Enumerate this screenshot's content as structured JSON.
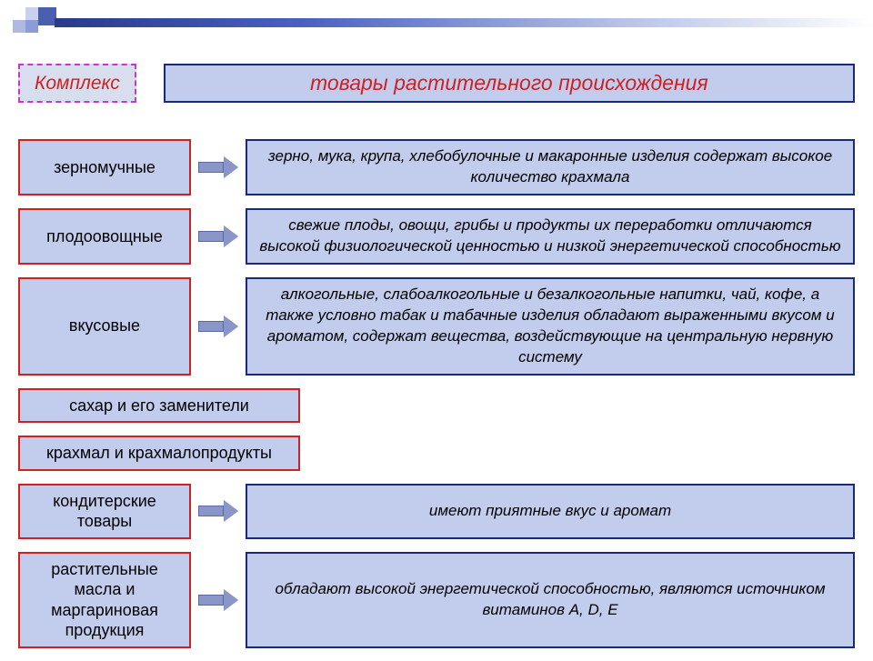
{
  "header": {
    "komplex": "Комплекс",
    "title": "товары растительного происхождения"
  },
  "rows": [
    {
      "category": "зерномучные",
      "description": "зерно, мука, крупа, хлебобулочные и макаронные изделия содержат высокое количество крахмала",
      "has_desc": true,
      "wide": false
    },
    {
      "category": "плодоовощные",
      "description": "свежие плоды, овощи, грибы и продукты их переработки отличаются высокой физиологической ценностью и низкой энергетической способностью",
      "has_desc": true,
      "wide": false
    },
    {
      "category": "вкусовые",
      "description": "алкогольные, слабоалкогольные и безалкогольные напитки, чай, кофе, а также условно табак и табачные изделия обладают выраженными вкусом и ароматом, содержат вещества, воздействующие на центральную нервную систему",
      "has_desc": true,
      "wide": false
    },
    {
      "category": "сахар и его заменители",
      "description": "",
      "has_desc": false,
      "wide": true
    },
    {
      "category": "крахмал и крахмалопродукты",
      "description": "",
      "has_desc": false,
      "wide": true
    },
    {
      "category": "кондитерские товары",
      "description": "имеют приятные вкус и аромат",
      "has_desc": true,
      "wide": false
    },
    {
      "category": "растительные масла и маргариновая продукция",
      "description": "обладают высокой энергетической способностью, являются источником витаминов A, D, E",
      "has_desc": true,
      "wide": false
    }
  ],
  "colors": {
    "box_bg": "#c2cced",
    "red_border": "#d02020",
    "blue_border": "#1a2a7a",
    "arrow_fill": "#8a96c8",
    "magenta_dash": "#c838c8"
  }
}
